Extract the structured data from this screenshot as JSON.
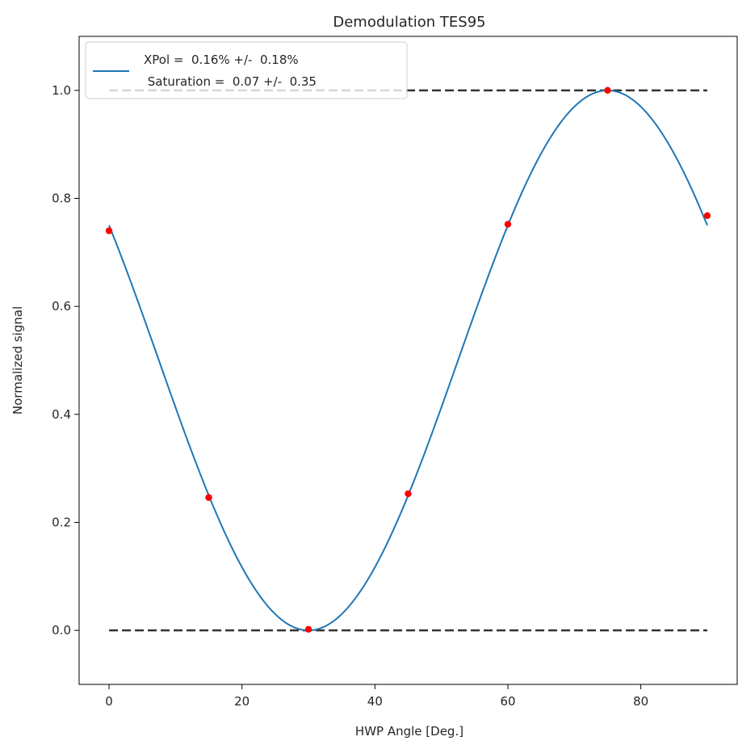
{
  "chart_data": {
    "type": "line",
    "title": "Demodulation TES95",
    "xlabel": "HWP Angle [Deg.]",
    "ylabel": "Normalized signal",
    "xlim": [
      -4.5,
      94.5
    ],
    "ylim": [
      -0.1,
      1.1
    ],
    "xticks": [
      0,
      20,
      40,
      60,
      80
    ],
    "xtick_labels": [
      "0",
      "20",
      "40",
      "60",
      "80"
    ],
    "yticks": [
      0.0,
      0.2,
      0.4,
      0.6,
      0.8,
      1.0
    ],
    "ytick_labels": [
      "0.0",
      "0.2",
      "0.4",
      "0.6",
      "0.8",
      "1.0"
    ],
    "grid": false,
    "legend_position": "upper-left",
    "series": [
      {
        "name": "XPol =  0.16% +/-  0.18%\n Saturation =  0.07 +/-  0.35",
        "kind": "line",
        "color": "#1f77b4",
        "model": "0.5 + 0.5*cos(4*(x - 75) deg)",
        "x_range": [
          0,
          90
        ]
      },
      {
        "kind": "scatter",
        "color": "#ff0000",
        "x": [
          0,
          15,
          30,
          45,
          60,
          75,
          90
        ],
        "y": [
          0.74,
          0.246,
          0.002,
          0.253,
          0.752,
          1.0,
          0.768
        ]
      },
      {
        "kind": "hline",
        "style": "dashed",
        "color": "#333333",
        "y": 1.0,
        "x_range": [
          0,
          90
        ]
      },
      {
        "kind": "hline",
        "style": "dashed",
        "color": "#333333",
        "y": 0.0,
        "x_range": [
          0,
          90
        ]
      }
    ],
    "legend": {
      "line1": "XPol =  0.16% +/-  0.18%",
      "line2": " Saturation =  0.07 +/-  0.35"
    }
  }
}
